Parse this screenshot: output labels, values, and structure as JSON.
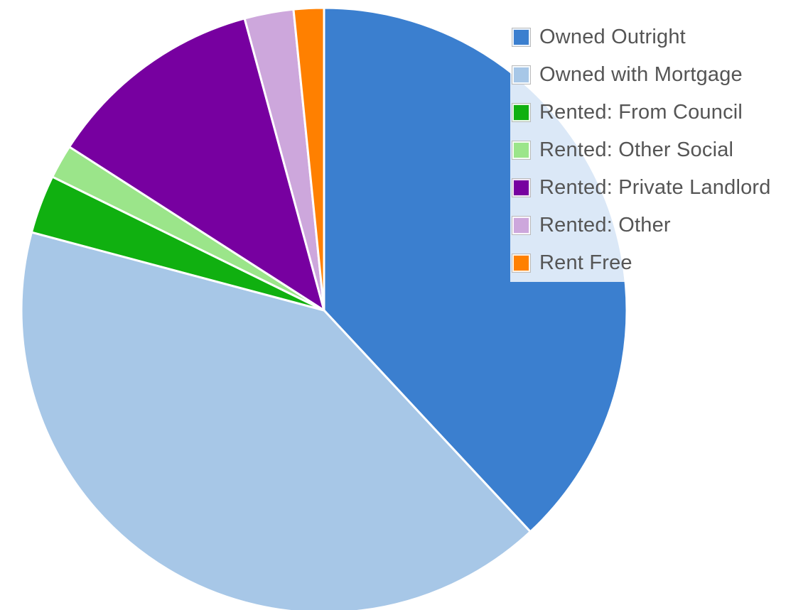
{
  "chart_data": {
    "type": "pie",
    "start_angle_deg": 0,
    "direction": "clockwise",
    "legend_position": "top-right",
    "categories": [
      "Owned Outright",
      "Owned with Mortgage",
      "Rented: From Council",
      "Rented: Other Social",
      "Rented: Private Landlord",
      "Rented: Other",
      "Rent Free"
    ],
    "values": [
      37.8,
      40.8,
      3.1,
      1.8,
      11.6,
      2.6,
      1.6
    ],
    "colors": [
      "#3b7fcf",
      "#a7c7e7",
      "#10b010",
      "#9be58a",
      "#7700a0",
      "#cda7dc",
      "#ff8000"
    ]
  },
  "legend": {
    "items": [
      {
        "label": "Owned Outright",
        "color": "#3b7fcf"
      },
      {
        "label": "Owned with Mortgage",
        "color": "#a7c7e7"
      },
      {
        "label": "Rented: From Council",
        "color": "#10b010"
      },
      {
        "label": "Rented: Other Social",
        "color": "#9be58a"
      },
      {
        "label": "Rented: Private Landlord",
        "color": "#7700a0"
      },
      {
        "label": "Rented: Other",
        "color": "#cda7dc"
      },
      {
        "label": "Rent Free",
        "color": "#ff8000"
      }
    ]
  }
}
